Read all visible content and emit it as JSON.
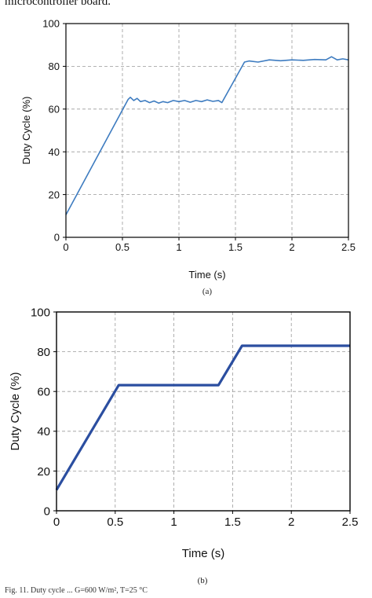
{
  "header_text": "microcontroller board.",
  "footer_text": "Fig. 11. Duty cycle ... G=600 W/m², T=25 °C",
  "chart_data": [
    {
      "type": "line",
      "panel": "(a)",
      "title": "",
      "xlabel": "Time (s)",
      "ylabel": "Duty Cycle (%)",
      "xlim": [
        0,
        2.5
      ],
      "ylim": [
        0,
        100
      ],
      "xticks": [
        0,
        0.5,
        1,
        1.5,
        2,
        2.5
      ],
      "xtick_labels": [
        "0",
        "0.5",
        "1",
        "1.5",
        "2",
        "2.5"
      ],
      "yticks": [
        0,
        20,
        40,
        60,
        80,
        100
      ],
      "ytick_labels": [
        "0",
        "20",
        "40",
        "60",
        "80",
        "100"
      ],
      "grid": true,
      "color": "#3e7cc0",
      "series": [
        {
          "x": [
            0,
            0.55,
            0.57,
            0.6,
            0.63,
            0.66,
            0.7,
            0.74,
            0.78,
            0.82,
            0.86,
            0.9,
            0.95,
            1.0,
            1.05,
            1.1,
            1.15,
            1.2,
            1.25,
            1.3,
            1.35,
            1.38,
            1.58,
            1.62,
            1.7,
            1.8,
            1.9,
            2.0,
            2.1,
            2.2,
            2.3,
            2.35,
            2.4,
            2.45,
            2.5
          ],
          "y": [
            10.5,
            64.5,
            65.5,
            64.0,
            65.0,
            63.5,
            64.0,
            63.0,
            63.8,
            62.8,
            63.5,
            63.0,
            64.0,
            63.5,
            64.0,
            63.2,
            64.0,
            63.5,
            64.3,
            63.6,
            64.0,
            63.0,
            82.0,
            82.5,
            82.0,
            83.0,
            82.6,
            83.0,
            82.8,
            83.2,
            83.0,
            84.5,
            83.0,
            83.5,
            83.0
          ]
        }
      ]
    },
    {
      "type": "line",
      "panel": "(b)",
      "title": "",
      "xlabel": "Time (s)",
      "ylabel": "Duty Cycle (%)",
      "xlim": [
        0,
        2.5
      ],
      "ylim": [
        0,
        100
      ],
      "xticks": [
        0,
        0.5,
        1,
        1.5,
        2,
        2.5
      ],
      "xtick_labels": [
        "0",
        "0.5",
        "1",
        "1.5",
        "2",
        "2.5"
      ],
      "yticks": [
        0,
        20,
        40,
        60,
        80,
        100
      ],
      "ytick_labels": [
        "0",
        "20",
        "40",
        "60",
        "80",
        "100"
      ],
      "grid": true,
      "color": "#2b4ea0",
      "series": [
        {
          "x": [
            0,
            0.53,
            1.0,
            1.38,
            1.58,
            2.0,
            2.5
          ],
          "y": [
            10.5,
            63.2,
            63.2,
            63.2,
            83.0,
            83.0,
            83.0
          ]
        }
      ]
    }
  ]
}
